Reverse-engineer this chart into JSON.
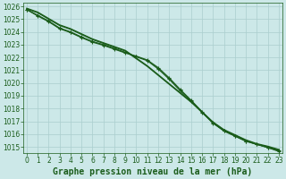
{
  "title": "Graphe pression niveau de la mer (hPa)",
  "bg_color": "#cce8e8",
  "grid_color": "#aacece",
  "line_color": "#1a5c1a",
  "x_values": [
    0,
    1,
    2,
    3,
    4,
    5,
    6,
    7,
    8,
    9,
    10,
    11,
    12,
    13,
    14,
    15,
    16,
    17,
    18,
    19,
    20,
    21,
    22,
    23
  ],
  "series_smooth": [
    [
      1025.8,
      1025.5,
      1025.0,
      1024.5,
      1024.2,
      1023.8,
      1023.4,
      1023.1,
      1022.8,
      1022.5,
      1021.9,
      1021.3,
      1020.6,
      1019.9,
      1019.2,
      1018.5,
      1017.7,
      1016.9,
      1016.3,
      1015.9,
      1015.5,
      1015.2,
      1015.0,
      1014.75
    ],
    [
      1025.85,
      1025.55,
      1025.05,
      1024.55,
      1024.25,
      1023.85,
      1023.45,
      1023.15,
      1022.85,
      1022.55,
      1021.95,
      1021.35,
      1020.65,
      1019.95,
      1019.25,
      1018.55,
      1017.75,
      1016.95,
      1016.35,
      1015.95,
      1015.55,
      1015.25,
      1015.05,
      1014.8
    ]
  ],
  "series_marked": [
    [
      1025.75,
      1025.3,
      1024.85,
      1024.3,
      1024.0,
      1023.6,
      1023.25,
      1023.0,
      1022.7,
      1022.4,
      1022.05,
      1021.75,
      1021.1,
      1020.3,
      1019.4,
      1018.6,
      1017.7,
      1016.85,
      1016.25,
      1015.85,
      1015.45,
      1015.2,
      1014.95,
      1014.7
    ],
    [
      1025.75,
      1025.25,
      1024.8,
      1024.25,
      1023.95,
      1023.55,
      1023.2,
      1022.95,
      1022.65,
      1022.35,
      1022.1,
      1021.8,
      1021.2,
      1020.4,
      1019.5,
      1018.65,
      1017.75,
      1016.9,
      1016.25,
      1015.85,
      1015.45,
      1015.2,
      1014.95,
      1014.65
    ]
  ],
  "ylim": [
    1014.5,
    1026.3
  ],
  "yticks": [
    1015,
    1016,
    1017,
    1018,
    1019,
    1020,
    1021,
    1022,
    1023,
    1024,
    1025,
    1026
  ],
  "xlim": [
    -0.3,
    23.3
  ],
  "title_fontsize": 7.0,
  "tick_fontsize": 5.5,
  "title_color": "#1a5c1a",
  "tick_color": "#1a5c1a"
}
